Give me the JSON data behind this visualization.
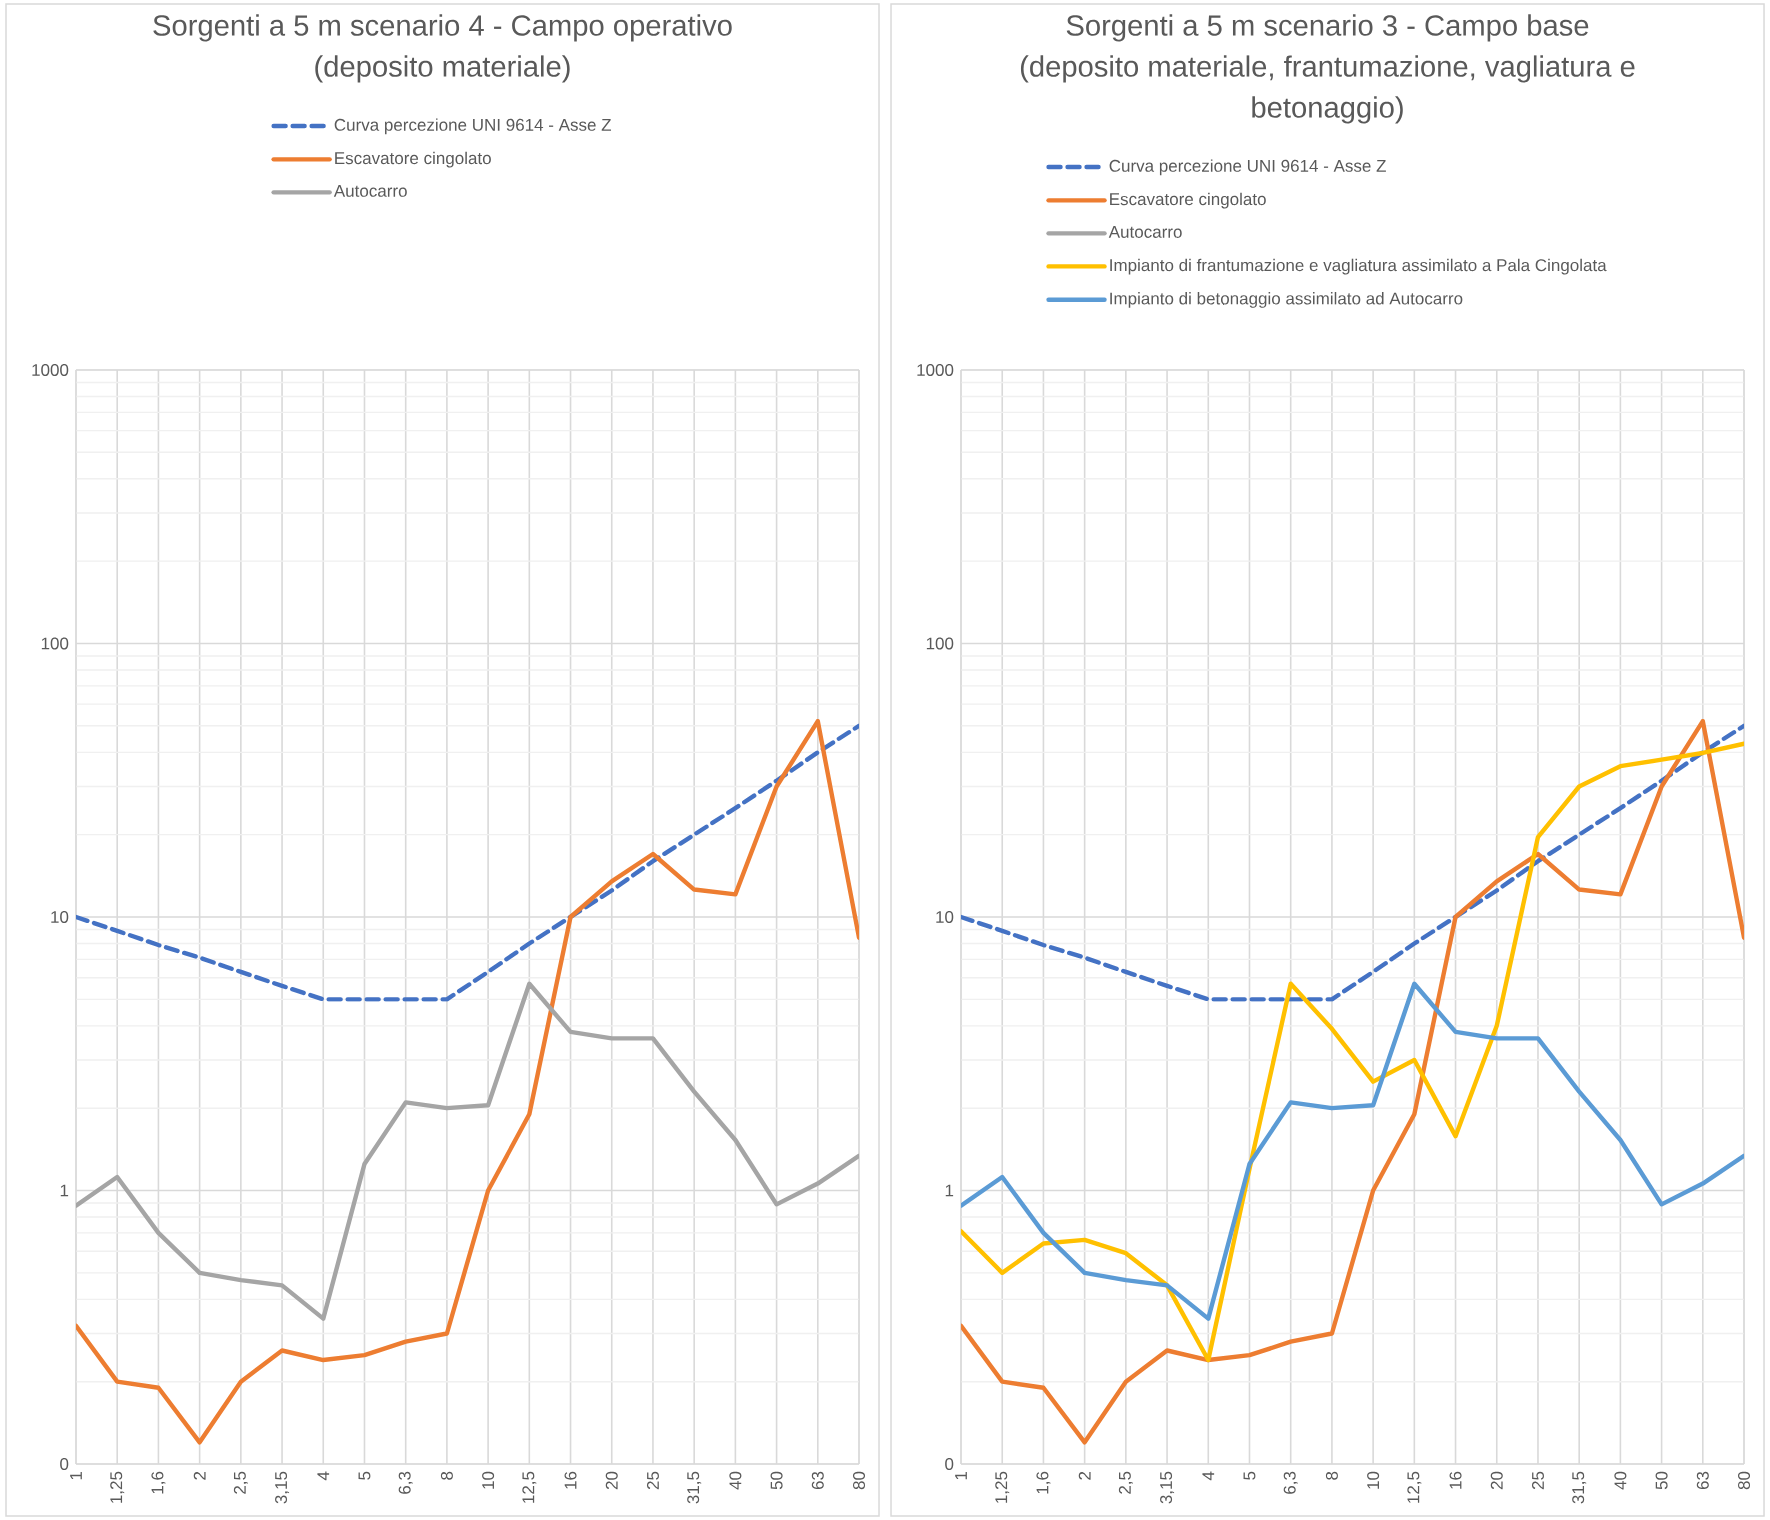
{
  "chart_data": [
    {
      "type": "line",
      "title": "Sorgenti a 5 m scenario 4 - Campo operativo (deposito materiale)",
      "categories": [
        "1",
        "1,25",
        "1,6",
        "2",
        "2,5",
        "3,15",
        "4",
        "5",
        "6,3",
        "8",
        "10",
        "12,5",
        "16",
        "20",
        "25",
        "31,5",
        "40",
        "50",
        "63",
        "80"
      ],
      "ylim": [
        0.1,
        1000
      ],
      "yticks": [
        {
          "value": 0.1,
          "label": "0"
        },
        1,
        10,
        100,
        1000
      ],
      "log": "y",
      "grid": true,
      "legend": "top",
      "series": [
        {
          "name": "Curva percezione UNI 9614 - Asse Z",
          "color": "#4472c4",
          "line_style": "dashed",
          "values": [
            10,
            8.9,
            7.9,
            7.1,
            6.3,
            5.6,
            5,
            5,
            5,
            5,
            6.3,
            8,
            10,
            12.5,
            16,
            20,
            25,
            31.5,
            40,
            50
          ]
        },
        {
          "name": "Escavatore cingolato",
          "color": "#ed7d31",
          "values": [
            0.32,
            0.2,
            0.19,
            0.12,
            0.2,
            0.26,
            0.24,
            0.25,
            0.28,
            0.3,
            1,
            1.9,
            10,
            13.5,
            17,
            12.6,
            12.1,
            30,
            52,
            8.4
          ]
        },
        {
          "name": "Autocarro",
          "color": "#a5a5a5",
          "values": [
            0.88,
            1.12,
            0.7,
            0.5,
            0.47,
            0.45,
            0.34,
            1.25,
            2.1,
            2,
            2.05,
            5.7,
            3.8,
            3.6,
            3.6,
            2.3,
            1.53,
            0.89,
            1.06,
            1.34
          ]
        }
      ]
    },
    {
      "type": "line",
      "title": "Sorgenti a 5 m scenario 3 - Campo base (deposito materiale, frantumazione, vagliatura e betonaggio)",
      "categories": [
        "1",
        "1,25",
        "1,6",
        "2",
        "2,5",
        "3,15",
        "4",
        "5",
        "6,3",
        "8",
        "10",
        "12,5",
        "16",
        "20",
        "25",
        "31,5",
        "40",
        "50",
        "63",
        "80"
      ],
      "ylim": [
        0.1,
        1000
      ],
      "yticks": [
        {
          "value": 0.1,
          "label": "0"
        },
        1,
        10,
        100,
        1000
      ],
      "log": "y",
      "grid": true,
      "legend": "top",
      "series": [
        {
          "name": "Curva percezione UNI 9614 - Asse Z",
          "color": "#4472c4",
          "line_style": "dashed",
          "values": [
            10,
            8.9,
            7.9,
            7.1,
            6.3,
            5.6,
            5,
            5,
            5,
            5,
            6.3,
            8,
            10,
            12.5,
            16,
            20,
            25,
            31.5,
            40,
            50
          ]
        },
        {
          "name": "Escavatore cingolato",
          "color": "#ed7d31",
          "values": [
            0.32,
            0.2,
            0.19,
            0.12,
            0.2,
            0.26,
            0.24,
            0.25,
            0.28,
            0.3,
            1,
            1.9,
            10,
            13.5,
            17,
            12.6,
            12.1,
            30,
            52,
            8.4
          ]
        },
        {
          "name": "Autocarro",
          "color": "#a5a5a5",
          "values": [
            null,
            null,
            null,
            null,
            null,
            null,
            null,
            null,
            null,
            null,
            null,
            null,
            null,
            null,
            null,
            null,
            null,
            null,
            null,
            null
          ]
        },
        {
          "name": "Impianto di frantumazione e vagliatura assimilato a Pala Cingolata",
          "color": "#ffc000",
          "values": [
            0.71,
            0.5,
            0.64,
            0.66,
            0.59,
            0.45,
            0.24,
            1.2,
            5.7,
            3.9,
            2.5,
            3,
            1.58,
            4,
            19.6,
            30,
            35.6,
            37.6,
            39.8,
            43
          ]
        },
        {
          "name": "Impianto di betonaggio assimilato ad Autocarro",
          "color": "#5b9bd5",
          "values": [
            0.88,
            1.12,
            0.7,
            0.5,
            0.47,
            0.45,
            0.34,
            1.25,
            2.1,
            2,
            2.05,
            5.7,
            3.8,
            3.6,
            3.6,
            2.3,
            1.53,
            0.89,
            1.06,
            1.34
          ]
        }
      ]
    }
  ]
}
